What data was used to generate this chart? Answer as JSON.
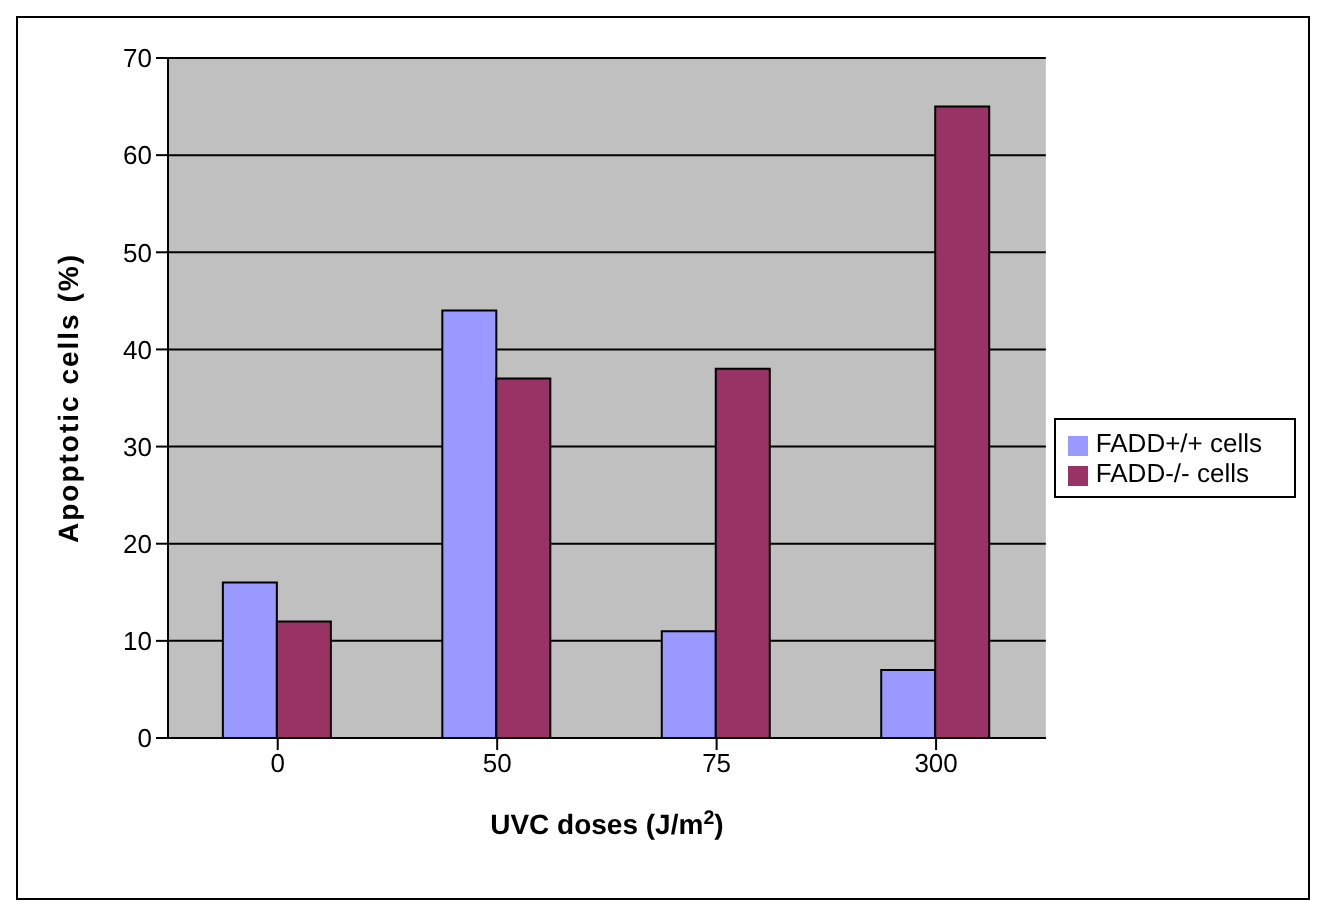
{
  "chart_data": {
    "type": "bar",
    "xlabel": "UVC doses (J/m$^{2}$)",
    "ylabel": "Apoptotic cells (%)",
    "categories": [
      "0",
      "50",
      "75",
      "300"
    ],
    "series": [
      {
        "name": "FADD+/+ cells",
        "color": "#9999ff",
        "values": [
          16,
          44,
          11,
          7
        ]
      },
      {
        "name": "FADD-/- cells",
        "color": "#993366",
        "values": [
          12,
          37,
          38,
          65
        ]
      }
    ],
    "ylim": [
      0,
      70
    ],
    "yticks": [
      0,
      10,
      20,
      30,
      40,
      50,
      60,
      70
    ],
    "grid": "y",
    "legend": "right"
  }
}
